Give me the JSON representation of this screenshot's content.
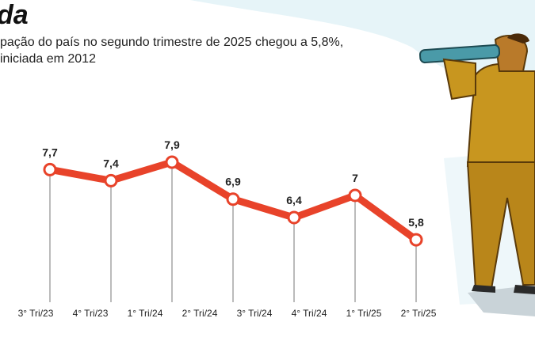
{
  "chart_data": {
    "type": "line",
    "title": "da",
    "subtitle": [
      "pação do país no segundo trimestre de 2025 chegou a 5,8%,",
      " iniciada em 2012"
    ],
    "categories": [
      "3° Tri/23",
      "4° Tri/23",
      "1° Tri/24",
      "2° Tri/24",
      "3° Tri/24",
      "4° Tri/24",
      "1° Tri/25",
      "2° Tri/25"
    ],
    "values": [
      null,
      7.7,
      7.4,
      7.9,
      6.9,
      6.4,
      7,
      5.8
    ],
    "value_labels": [
      null,
      "7,7",
      "7,4",
      "7,9",
      "6,9",
      "6,4",
      "7",
      "5,8"
    ],
    "color": "#e8432a"
  }
}
